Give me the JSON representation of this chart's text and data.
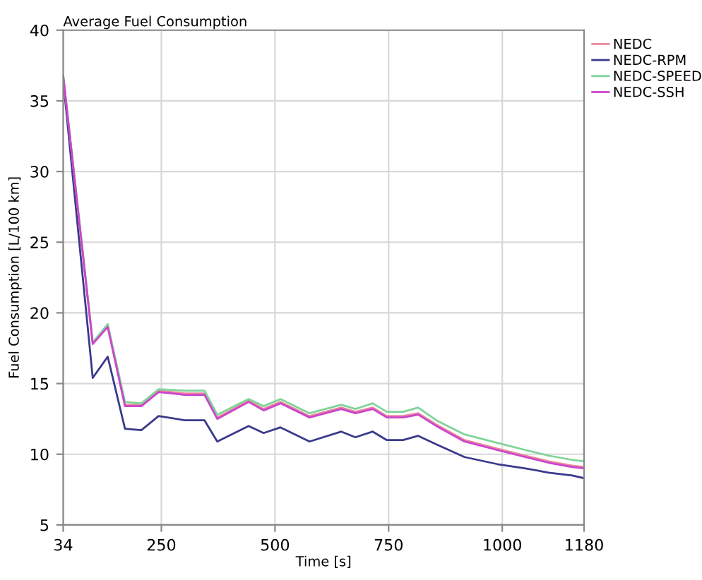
{
  "chart_data": {
    "type": "line",
    "title": "Average Fuel Consumption",
    "xlabel": "Time [s]",
    "ylabel": "Fuel Consumption [L/100 km]",
    "x": [
      34,
      99,
      132,
      170,
      206,
      244,
      302,
      345,
      373,
      442,
      475,
      512,
      576,
      646,
      677,
      715,
      746,
      782,
      815,
      855,
      917,
      989,
      1051,
      1102,
      1154,
      1180
    ],
    "series": [
      {
        "name": "NEDC",
        "color": "#e88a9a",
        "values": [
          36.8,
          17.9,
          19.1,
          13.5,
          13.5,
          14.5,
          14.3,
          14.3,
          12.6,
          13.8,
          13.2,
          13.7,
          12.7,
          13.3,
          13.0,
          13.3,
          12.7,
          12.7,
          12.9,
          12.1,
          11.0,
          10.4,
          9.9,
          9.5,
          9.2,
          9.1
        ]
      },
      {
        "name": "NEDC-RPM",
        "color": "#3a3a8c",
        "values": [
          36.5,
          15.4,
          16.9,
          11.8,
          11.7,
          12.7,
          12.4,
          12.4,
          10.9,
          12.0,
          11.5,
          11.9,
          10.9,
          11.6,
          11.2,
          11.6,
          11.0,
          11.0,
          11.3,
          10.7,
          9.8,
          9.3,
          9.0,
          8.7,
          8.5,
          8.3
        ]
      },
      {
        "name": "NEDC-SPEED",
        "color": "#7fd49a",
        "values": [
          36.8,
          17.9,
          19.2,
          13.7,
          13.6,
          14.6,
          14.5,
          14.5,
          12.8,
          13.9,
          13.4,
          13.9,
          12.9,
          13.5,
          13.2,
          13.6,
          13.0,
          13.0,
          13.3,
          12.4,
          11.4,
          10.8,
          10.3,
          9.9,
          9.6,
          9.5
        ]
      },
      {
        "name": "NEDC-SSH",
        "color": "#cc44cc",
        "values": [
          36.8,
          17.8,
          19.0,
          13.4,
          13.4,
          14.4,
          14.2,
          14.2,
          12.5,
          13.7,
          13.1,
          13.6,
          12.6,
          13.2,
          12.9,
          13.2,
          12.6,
          12.6,
          12.8,
          12.0,
          10.9,
          10.3,
          9.8,
          9.4,
          9.1,
          9.0
        ]
      }
    ],
    "xlim": [
      34,
      1180
    ],
    "ylim": [
      5,
      40
    ],
    "xticks": [
      34,
      250,
      500,
      750,
      1000,
      1180
    ],
    "yticks": [
      5,
      10,
      15,
      20,
      25,
      30,
      35,
      40
    ],
    "grid": true,
    "legend": "top right",
    "line_style": "solid",
    "marker": "none"
  }
}
